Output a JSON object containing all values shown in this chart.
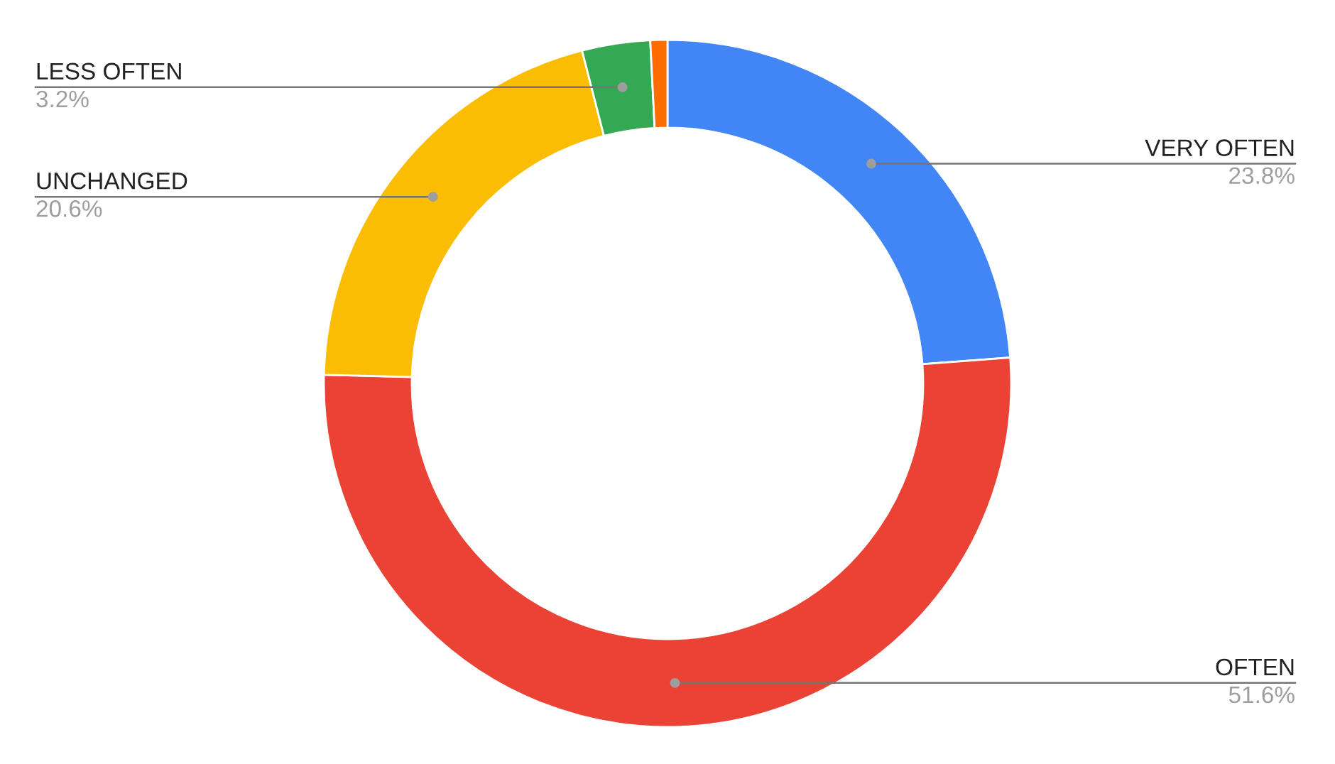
{
  "chart_data": {
    "type": "donut",
    "categories": [
      "VERY OFTEN",
      "OFTEN",
      "UNCHANGED",
      "LESS OFTEN",
      null
    ],
    "values": [
      23.8,
      51.6,
      20.6,
      3.2,
      0.8
    ],
    "colors": [
      "#4285f4",
      "#ea4335",
      "#fbbc04",
      "#34a853",
      "#ff6d01"
    ],
    "value_labels": [
      "23.8%",
      "51.6%",
      "20.6%",
      "3.2%",
      null
    ]
  }
}
